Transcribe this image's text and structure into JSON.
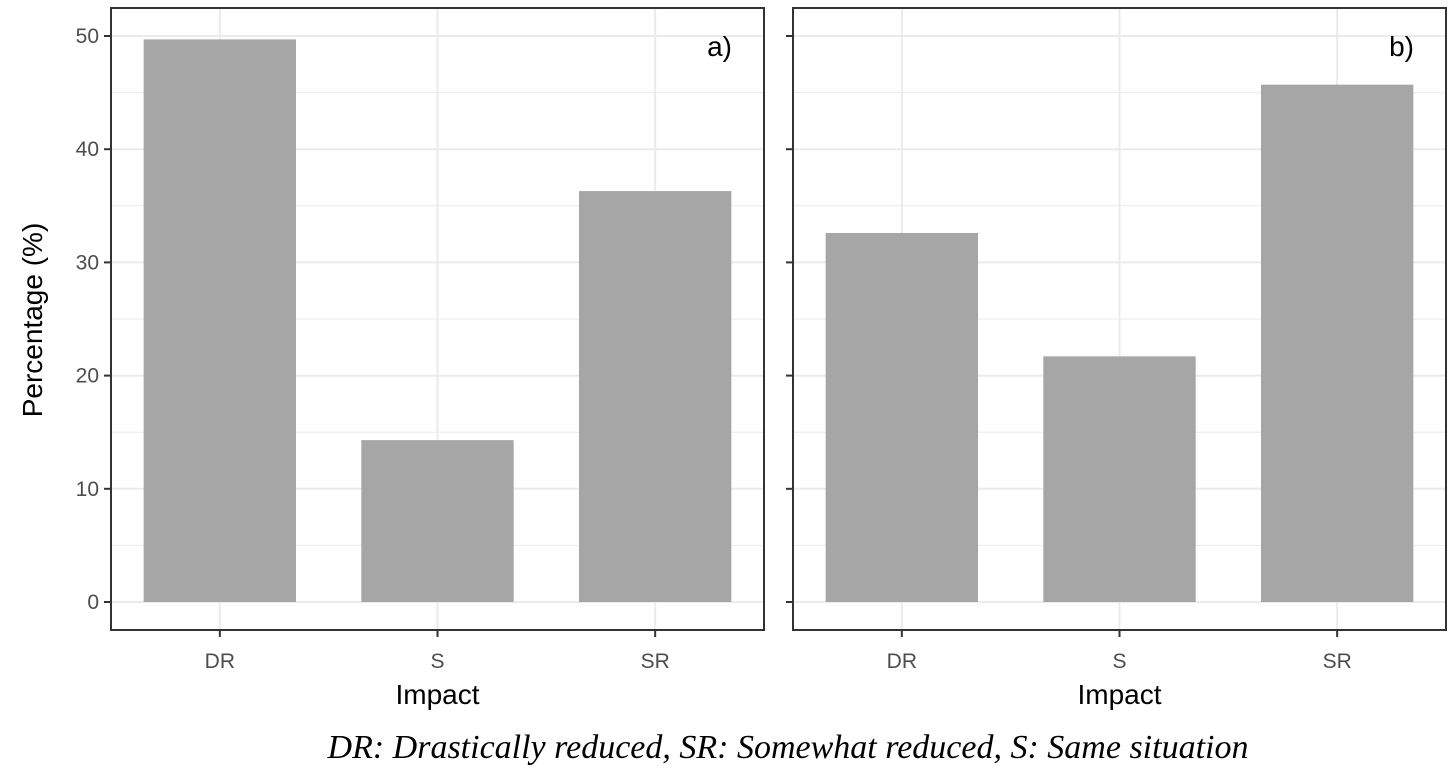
{
  "chart_data": [
    {
      "type": "bar",
      "panel_label": "a)",
      "categories": [
        "DR",
        "S",
        "SR"
      ],
      "values": [
        49.7,
        14.3,
        36.3
      ],
      "xlabel": "Impact",
      "ylabel": "Percentage (%)",
      "ylim": [
        0,
        52
      ],
      "yticks": [
        "0",
        "10",
        "20",
        "30",
        "40",
        "50"
      ],
      "grid": true
    },
    {
      "type": "bar",
      "panel_label": "b)",
      "categories": [
        "DR",
        "S",
        "SR"
      ],
      "values": [
        32.6,
        21.7,
        45.7
      ],
      "xlabel": "Impact",
      "ylabel": "",
      "ylim": [
        0,
        52
      ],
      "yticks": [
        "0",
        "10",
        "20",
        "30",
        "40",
        "50"
      ],
      "grid": true
    }
  ],
  "caption": "DR: Drastically reduced, SR: Somewhat reduced, S: Same situation",
  "colors": {
    "bar": "#a6a6a6",
    "grid": "#ebebeb",
    "panel_border": "#333333"
  }
}
